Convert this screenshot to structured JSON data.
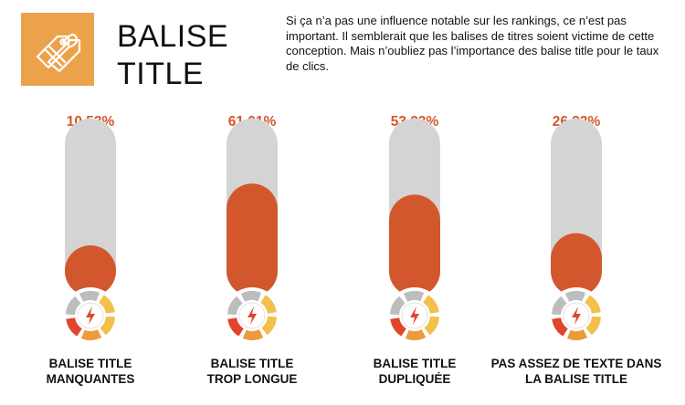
{
  "header": {
    "title_line1": "BALISE",
    "title_line2": "TITLE",
    "description": "Si ça n’a pas une influence notable sur les rankings, ce n’est pas important. Il semblerait que les balises de titres soient victime de cette conception. Mais n’oubliez pas l’importance des balise title pour le taux de clics.",
    "icon": "tag-icon"
  },
  "colors": {
    "accent_orange": "#D3572D",
    "track_gray": "#D4D4D4",
    "icon_bg": "#ECA24A",
    "label_orange": "#D3572D"
  },
  "chart_data": {
    "type": "bar",
    "categories": [
      [
        "BALISE TITLE",
        "MANQUANTES"
      ],
      [
        "BALISE TITLE",
        "TROP LONGUE"
      ],
      [
        "BALISE TITLE",
        "DUPLIQUÉE"
      ],
      [
        "PAS ASSEZ DE TEXTE DANS",
        "LA BALISE TITLE"
      ]
    ],
    "values": [
      10.53,
      61.01,
      53.23,
      26.33
    ],
    "value_labels": [
      "10.53%",
      "61.01%",
      "53.23%",
      "26.33%"
    ],
    "ylim": [
      0,
      100
    ],
    "gauge_icon": "gauge-lightning-icon"
  }
}
